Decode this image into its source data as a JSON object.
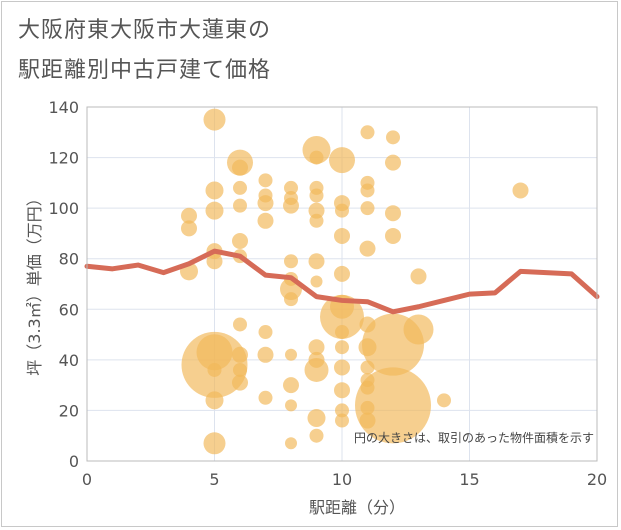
{
  "title_line1": "大阪府東大阪市大蓮東の",
  "title_line2": "駅距離別中古戸建て価格",
  "chart_data": {
    "type": "scatter",
    "title": "大阪府東大阪市大蓮東の駅距離別中古戸建て価格",
    "xlabel": "駅距離（分）",
    "ylabel": "坪（3.3㎡）単価（万円）",
    "xlim": [
      0,
      20
    ],
    "ylim": [
      0,
      140
    ],
    "xticks": [
      0,
      5,
      10,
      15,
      20
    ],
    "yticks": [
      0,
      20,
      40,
      60,
      80,
      100,
      120,
      140
    ],
    "grid": true,
    "note": "円の大きさは、取引のあった物件面積を示す",
    "bubble_color": "#f2b85a",
    "line_color": "#d66b57",
    "points": [
      {
        "x": 4,
        "y": 97,
        "s": 8
      },
      {
        "x": 4,
        "y": 92,
        "s": 8
      },
      {
        "x": 4,
        "y": 75,
        "s": 9
      },
      {
        "x": 5,
        "y": 135,
        "s": 11
      },
      {
        "x": 5,
        "y": 107,
        "s": 9
      },
      {
        "x": 5,
        "y": 99,
        "s": 9
      },
      {
        "x": 5,
        "y": 83,
        "s": 8
      },
      {
        "x": 5,
        "y": 79,
        "s": 8
      },
      {
        "x": 5,
        "y": 43,
        "s": 18
      },
      {
        "x": 5,
        "y": 38,
        "s": 33
      },
      {
        "x": 5,
        "y": 36,
        "s": 7
      },
      {
        "x": 5,
        "y": 24,
        "s": 9
      },
      {
        "x": 5,
        "y": 7,
        "s": 11
      },
      {
        "x": 6,
        "y": 118,
        "s": 13
      },
      {
        "x": 6,
        "y": 116,
        "s": 8
      },
      {
        "x": 6,
        "y": 108,
        "s": 7
      },
      {
        "x": 6,
        "y": 101,
        "s": 7
      },
      {
        "x": 6,
        "y": 87,
        "s": 8
      },
      {
        "x": 6,
        "y": 81,
        "s": 7
      },
      {
        "x": 6,
        "y": 54,
        "s": 7
      },
      {
        "x": 6,
        "y": 42,
        "s": 8
      },
      {
        "x": 6,
        "y": 36,
        "s": 7
      },
      {
        "x": 6,
        "y": 31,
        "s": 8
      },
      {
        "x": 7,
        "y": 111,
        "s": 7
      },
      {
        "x": 7,
        "y": 105,
        "s": 7
      },
      {
        "x": 7,
        "y": 102,
        "s": 8
      },
      {
        "x": 7,
        "y": 95,
        "s": 8
      },
      {
        "x": 7,
        "y": 51,
        "s": 7
      },
      {
        "x": 7,
        "y": 42,
        "s": 8
      },
      {
        "x": 7,
        "y": 25,
        "s": 7
      },
      {
        "x": 8,
        "y": 108,
        "s": 7
      },
      {
        "x": 8,
        "y": 104,
        "s": 7
      },
      {
        "x": 8,
        "y": 101,
        "s": 8
      },
      {
        "x": 8,
        "y": 79,
        "s": 7
      },
      {
        "x": 8,
        "y": 72,
        "s": 7
      },
      {
        "x": 8,
        "y": 68,
        "s": 11
      },
      {
        "x": 8,
        "y": 64,
        "s": 7
      },
      {
        "x": 8,
        "y": 42,
        "s": 6
      },
      {
        "x": 8,
        "y": 30,
        "s": 8
      },
      {
        "x": 8,
        "y": 22,
        "s": 6
      },
      {
        "x": 8,
        "y": 7,
        "s": 6
      },
      {
        "x": 9,
        "y": 123,
        "s": 14
      },
      {
        "x": 9,
        "y": 120,
        "s": 7
      },
      {
        "x": 9,
        "y": 108,
        "s": 7
      },
      {
        "x": 9,
        "y": 105,
        "s": 7
      },
      {
        "x": 9,
        "y": 99,
        "s": 8
      },
      {
        "x": 9,
        "y": 95,
        "s": 7
      },
      {
        "x": 9,
        "y": 79,
        "s": 8
      },
      {
        "x": 9,
        "y": 71,
        "s": 6
      },
      {
        "x": 9,
        "y": 45,
        "s": 8
      },
      {
        "x": 9,
        "y": 40,
        "s": 8
      },
      {
        "x": 9,
        "y": 36,
        "s": 12
      },
      {
        "x": 9,
        "y": 17,
        "s": 9
      },
      {
        "x": 9,
        "y": 10,
        "s": 7
      },
      {
        "x": 10,
        "y": 119,
        "s": 13
      },
      {
        "x": 10,
        "y": 102,
        "s": 8
      },
      {
        "x": 10,
        "y": 99,
        "s": 7
      },
      {
        "x": 10,
        "y": 89,
        "s": 8
      },
      {
        "x": 10,
        "y": 74,
        "s": 8
      },
      {
        "x": 10,
        "y": 61,
        "s": 12
      },
      {
        "x": 10,
        "y": 57,
        "s": 22
      },
      {
        "x": 10,
        "y": 51,
        "s": 7
      },
      {
        "x": 10,
        "y": 45,
        "s": 7
      },
      {
        "x": 10,
        "y": 37,
        "s": 8
      },
      {
        "x": 10,
        "y": 28,
        "s": 8
      },
      {
        "x": 10,
        "y": 20,
        "s": 7
      },
      {
        "x": 10,
        "y": 16,
        "s": 7
      },
      {
        "x": 11,
        "y": 130,
        "s": 7
      },
      {
        "x": 11,
        "y": 110,
        "s": 7
      },
      {
        "x": 11,
        "y": 107,
        "s": 7
      },
      {
        "x": 11,
        "y": 100,
        "s": 7
      },
      {
        "x": 11,
        "y": 84,
        "s": 8
      },
      {
        "x": 11,
        "y": 54,
        "s": 8
      },
      {
        "x": 11,
        "y": 45,
        "s": 9
      },
      {
        "x": 11,
        "y": 37,
        "s": 7
      },
      {
        "x": 11,
        "y": 32,
        "s": 7
      },
      {
        "x": 11,
        "y": 29,
        "s": 7
      },
      {
        "x": 11,
        "y": 21,
        "s": 7
      },
      {
        "x": 11,
        "y": 16,
        "s": 8
      },
      {
        "x": 12,
        "y": 128,
        "s": 7
      },
      {
        "x": 12,
        "y": 118,
        "s": 8
      },
      {
        "x": 12,
        "y": 98,
        "s": 8
      },
      {
        "x": 12,
        "y": 89,
        "s": 8
      },
      {
        "x": 12,
        "y": 46,
        "s": 31
      },
      {
        "x": 12,
        "y": 22,
        "s": 38
      },
      {
        "x": 13,
        "y": 52,
        "s": 15
      },
      {
        "x": 13,
        "y": 73,
        "s": 8
      },
      {
        "x": 14,
        "y": 24,
        "s": 7
      },
      {
        "x": 17,
        "y": 107,
        "s": 8
      }
    ],
    "average_line": {
      "x": [
        0,
        1,
        2,
        3,
        4,
        5,
        6,
        7,
        8,
        9,
        10,
        11,
        12,
        13,
        14,
        15,
        16,
        17,
        18,
        19,
        20
      ],
      "y": [
        77,
        76,
        77.5,
        74.5,
        78,
        83,
        81,
        73.5,
        72.5,
        65,
        63.5,
        63,
        59,
        61,
        63.5,
        66,
        66.5,
        75,
        74.5,
        74,
        65
      ]
    }
  }
}
